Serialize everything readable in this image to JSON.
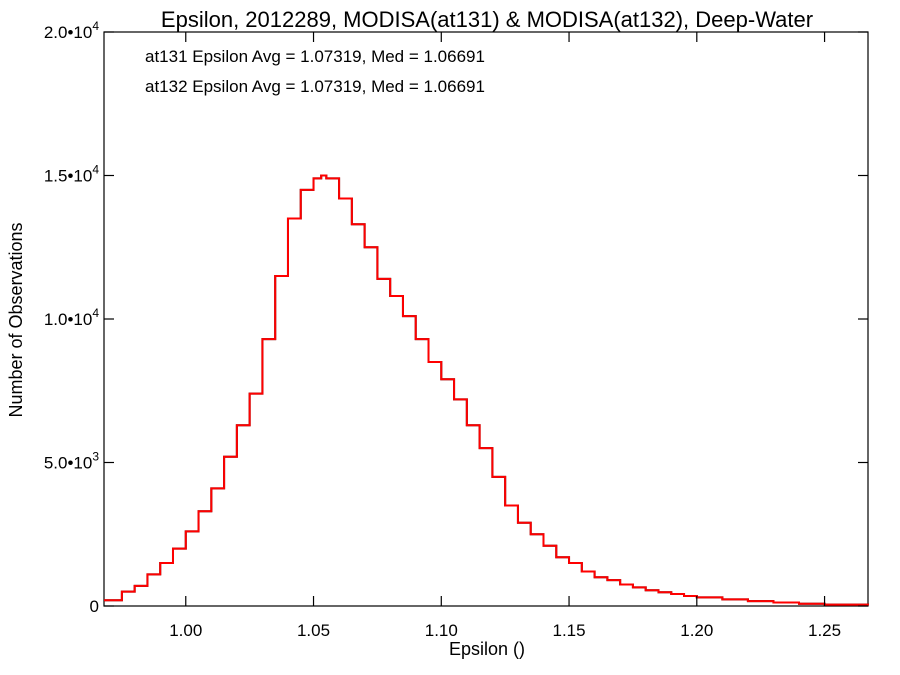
{
  "chart_data": {
    "type": "step-histogram",
    "title": "Epsilon, 2012289, MODISA(at131) & MODISA(at132), Deep-Water",
    "xlabel": "Epsilon ()",
    "ylabel": "Number of Observations",
    "xlim": [
      0.968,
      1.267
    ],
    "ylim": [
      0,
      20000
    ],
    "x_ticks": [
      {
        "value": 1.0,
        "label": "1.00"
      },
      {
        "value": 1.05,
        "label": "1.05"
      },
      {
        "value": 1.1,
        "label": "1.10"
      },
      {
        "value": 1.15,
        "label": "1.15"
      },
      {
        "value": 1.2,
        "label": "1.20"
      },
      {
        "value": 1.25,
        "label": "1.25"
      }
    ],
    "y_ticks": [
      {
        "value": 0,
        "mantissa": "0",
        "exponent": ""
      },
      {
        "value": 5000,
        "mantissa": "5.0•10",
        "exponent": "3"
      },
      {
        "value": 10000,
        "mantissa": "1.0•10",
        "exponent": "4"
      },
      {
        "value": 15000,
        "mantissa": "1.5•10",
        "exponent": "4"
      },
      {
        "value": 20000,
        "mantissa": "2.0•10",
        "exponent": "4"
      }
    ],
    "grid": false,
    "annotations": [
      {
        "text": "at131 Epsilon Avg = 1.07319, Med = 1.06691",
        "color": "#000000"
      },
      {
        "text": "at132 Epsilon Avg = 1.07319, Med = 1.06691",
        "color": "#ff0000"
      }
    ],
    "series": [
      {
        "name": "at131",
        "color": "#000000",
        "x": [
          0.968,
          0.975,
          0.98,
          0.985,
          0.99,
          0.995,
          1.0,
          1.005,
          1.01,
          1.015,
          1.02,
          1.025,
          1.03,
          1.035,
          1.04,
          1.045,
          1.05,
          1.053,
          1.055,
          1.06,
          1.065,
          1.07,
          1.075,
          1.08,
          1.085,
          1.09,
          1.095,
          1.1,
          1.105,
          1.11,
          1.115,
          1.12,
          1.125,
          1.13,
          1.135,
          1.14,
          1.145,
          1.15,
          1.155,
          1.16,
          1.165,
          1.17,
          1.175,
          1.18,
          1.185,
          1.19,
          1.195,
          1.2,
          1.21,
          1.22,
          1.23,
          1.24,
          1.25,
          1.267
        ],
        "y": [
          200,
          500,
          700,
          1100,
          1500,
          2000,
          2600,
          3300,
          4100,
          5200,
          6300,
          7400,
          9300,
          11500,
          13500,
          14500,
          14900,
          15000,
          14900,
          14200,
          13300,
          12500,
          11400,
          10800,
          10100,
          9300,
          8500,
          7900,
          7200,
          6300,
          5500,
          4500,
          3500,
          2900,
          2500,
          2100,
          1700,
          1500,
          1200,
          1000,
          900,
          750,
          650,
          550,
          480,
          420,
          350,
          300,
          230,
          170,
          120,
          80,
          50,
          20
        ]
      },
      {
        "name": "at132",
        "color": "#ff0000",
        "x": [
          0.968,
          0.975,
          0.98,
          0.985,
          0.99,
          0.995,
          1.0,
          1.005,
          1.01,
          1.015,
          1.02,
          1.025,
          1.03,
          1.035,
          1.04,
          1.045,
          1.05,
          1.053,
          1.055,
          1.06,
          1.065,
          1.07,
          1.075,
          1.08,
          1.085,
          1.09,
          1.095,
          1.1,
          1.105,
          1.11,
          1.115,
          1.12,
          1.125,
          1.13,
          1.135,
          1.14,
          1.145,
          1.15,
          1.155,
          1.16,
          1.165,
          1.17,
          1.175,
          1.18,
          1.185,
          1.19,
          1.195,
          1.2,
          1.21,
          1.22,
          1.23,
          1.24,
          1.25,
          1.267
        ],
        "y": [
          200,
          500,
          700,
          1100,
          1500,
          2000,
          2600,
          3300,
          4100,
          5200,
          6300,
          7400,
          9300,
          11500,
          13500,
          14500,
          14900,
          15000,
          14900,
          14200,
          13300,
          12500,
          11400,
          10800,
          10100,
          9300,
          8500,
          7900,
          7200,
          6300,
          5500,
          4500,
          3500,
          2900,
          2500,
          2100,
          1700,
          1500,
          1200,
          1000,
          900,
          750,
          650,
          550,
          480,
          420,
          350,
          300,
          230,
          170,
          120,
          80,
          50,
          20
        ]
      }
    ]
  }
}
